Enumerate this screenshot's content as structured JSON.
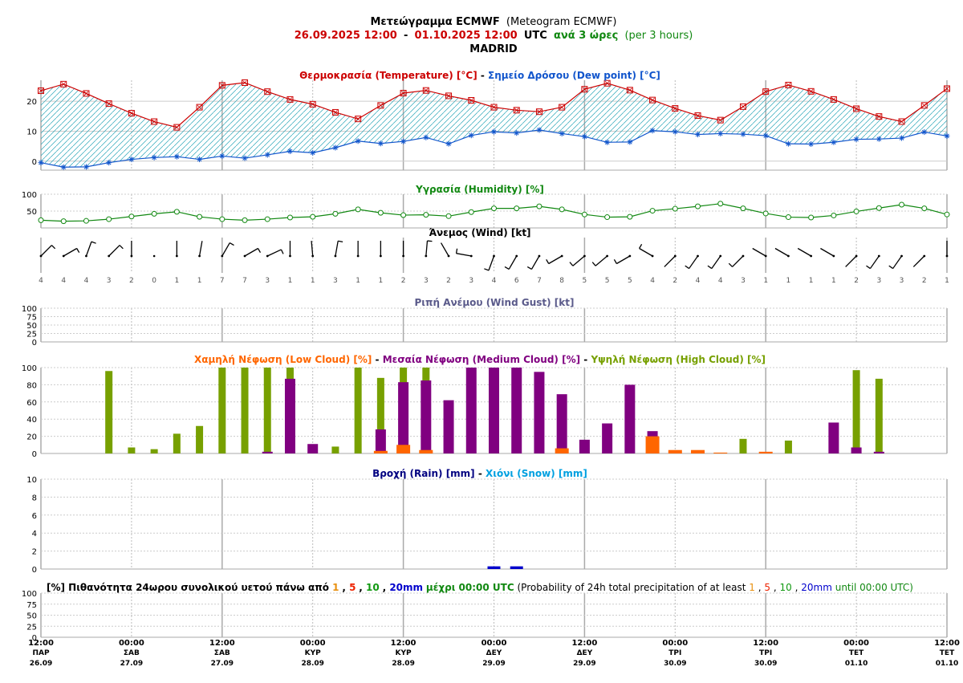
{
  "header": {
    "title_gr": "Μετεώγραμμα ECMWF",
    "title_en": "(Meteogram ECMWF)",
    "period_start": "26.09.2025 12:00",
    "period_sep": "-",
    "period_end": "01.10.2025 12:00",
    "period_utc": "UTC",
    "step_gr": "ανά 3 ώρες",
    "step_en": "(per 3 hours)",
    "location": "MADRID"
  },
  "colors": {
    "temperature": "#cc0000",
    "dewpoint": "#1155cc",
    "humidity": "#118811",
    "gust": "#5a5a8a",
    "low_cloud": "#ff6600",
    "medium_cloud": "#800080",
    "high_cloud": "#77a000",
    "rain": "#000080",
    "snow": "#00a0e0",
    "p1": "#e89010",
    "p5": "#ee2200",
    "p10": "#119911",
    "p20": "#0000cc",
    "shade": "#2aa6b8"
  },
  "x_axis": {
    "ticks": [
      {
        "time": "12:00",
        "day": "ΠΑΡ",
        "date": "26.09"
      },
      {
        "time": "00:00",
        "day": "ΣΑΒ",
        "date": "27.09"
      },
      {
        "time": "12:00",
        "day": "ΣΑΒ",
        "date": "27.09"
      },
      {
        "time": "00:00",
        "day": "ΚΥΡ",
        "date": "28.09"
      },
      {
        "time": "12:00",
        "day": "ΚΥΡ",
        "date": "28.09"
      },
      {
        "time": "00:00",
        "day": "ΔΕΥ",
        "date": "29.09"
      },
      {
        "time": "12:00",
        "day": "ΔΕΥ",
        "date": "29.09"
      },
      {
        "time": "00:00",
        "day": "ΤΡΙ",
        "date": "30.09"
      },
      {
        "time": "12:00",
        "day": "ΤΡΙ",
        "date": "30.09"
      },
      {
        "time": "00:00",
        "day": "ΤΕΤ",
        "date": "01.10"
      },
      {
        "time": "12:00",
        "day": "ΤΕΤ",
        "date": "01.10"
      }
    ]
  },
  "chart_data": [
    {
      "type": "line",
      "panel": "temperature",
      "title_parts": [
        "Θερμοκρασία (Temperature) [°C]",
        " - ",
        "Σημείο Δρόσου (Dew point) [°C]"
      ],
      "x_steps": 41,
      "yticks": [
        "0",
        "10",
        "20"
      ],
      "ylim": [
        -3,
        27
      ],
      "series": [
        {
          "name": "Θερμοκρασία (Temperature) [°C]",
          "values": [
            23.5,
            25.7,
            22.6,
            19.2,
            16.0,
            13.2,
            11.3,
            18.0,
            25.3,
            26.2,
            23.2,
            20.6,
            19.0,
            16.3,
            14.1,
            18.6,
            22.7,
            23.6,
            21.8,
            20.3,
            18.0,
            17.0,
            16.5,
            18.0,
            24.0,
            26.0,
            23.7,
            20.4,
            17.6,
            15.2,
            13.7,
            18.2,
            23.2,
            25.4,
            23.3,
            20.6,
            17.5,
            14.9,
            13.2,
            18.6,
            24.2
          ]
        },
        {
          "name": "Σημείο Δρόσου (Dew point) [°C]",
          "values": [
            -0.5,
            -2.0,
            -1.9,
            -0.5,
            0.6,
            1.2,
            1.5,
            0.6,
            1.7,
            1.0,
            2.1,
            3.3,
            2.8,
            4.5,
            6.7,
            5.9,
            6.6,
            7.9,
            5.8,
            8.6,
            9.8,
            9.4,
            10.4,
            9.2,
            8.2,
            6.3,
            6.4,
            10.2,
            9.8,
            8.9,
            9.2,
            9.0,
            8.5,
            5.8,
            5.7,
            6.3,
            7.3,
            7.4,
            7.7,
            9.7,
            8.4
          ]
        }
      ]
    },
    {
      "type": "line",
      "panel": "humidity",
      "title": "Υγρασία (Humidity) [%]",
      "yticks": [
        "50",
        "100"
      ],
      "ylim": [
        0,
        100
      ],
      "values": [
        23,
        20,
        21,
        26,
        34,
        42,
        48,
        33,
        26,
        23,
        26,
        31,
        33,
        42,
        55,
        45,
        38,
        39,
        35,
        47,
        58,
        58,
        64,
        55,
        40,
        32,
        33,
        51,
        57,
        64,
        72,
        58,
        43,
        32,
        31,
        37,
        49,
        59,
        69,
        58,
        40
      ]
    },
    {
      "type": "scatter",
      "panel": "wind",
      "title": "Άνεμος (Wind) [kt]",
      "speed_labels": [
        "4",
        "4",
        "4",
        "3",
        "2",
        "0",
        "1",
        "1",
        "7",
        "7",
        "3",
        "1",
        "1",
        "3",
        "1",
        "1",
        "2",
        "3",
        "2",
        "3",
        "4",
        "6",
        "7",
        "8",
        "5",
        "5",
        "5",
        "4",
        "2",
        "4",
        "4",
        "3",
        "1",
        "1",
        "1",
        "1",
        "2",
        "3",
        "3",
        "2",
        "1"
      ],
      "direction_deg": [
        45,
        60,
        20,
        45,
        0,
        0,
        0,
        10,
        30,
        60,
        65,
        0,
        355,
        10,
        0,
        0,
        0,
        5,
        330,
        280,
        200,
        210,
        210,
        240,
        230,
        230,
        240,
        300,
        225,
        215,
        215,
        225,
        300,
        300,
        300,
        300,
        225,
        215,
        215,
        225,
        0
      ]
    },
    {
      "type": "bar",
      "panel": "gust",
      "title": "Ριπή Ανέμου (Wind Gust) [kt]",
      "yticks": [
        "0",
        "25",
        "50",
        "75",
        "100"
      ],
      "ylim": [
        0,
        100
      ],
      "values": []
    },
    {
      "type": "bar",
      "panel": "cloud",
      "title_parts": [
        "Χαμηλή Νέφωση (Low Cloud) [%]",
        " - ",
        "Μεσαία Νέφωση (Medium Cloud) [%]",
        " - ",
        "Υψηλή Νέφωση (High Cloud) [%]"
      ],
      "yticks": [
        "0",
        "20",
        "40",
        "60",
        "80",
        "100"
      ],
      "ylim": [
        0,
        100
      ],
      "series": [
        {
          "name": "Χαμηλή Νέφωση (Low Cloud) [%]",
          "values": [
            0,
            0,
            0,
            0,
            0,
            0,
            0,
            0,
            0,
            0,
            0,
            0,
            0,
            0,
            0,
            3,
            10,
            4,
            0,
            0,
            0,
            0,
            0,
            6,
            0,
            0,
            0,
            20,
            4,
            4,
            1,
            0,
            2,
            0,
            0,
            0,
            0,
            0,
            0,
            0,
            0
          ]
        },
        {
          "name": "Μεσαία Νέφωση (Medium Cloud) [%]",
          "values": [
            0,
            0,
            0,
            0,
            0,
            0,
            0,
            0,
            0,
            0,
            2,
            87,
            11,
            0,
            0,
            28,
            83,
            85,
            62,
            100,
            100,
            100,
            95,
            69,
            16,
            35,
            80,
            26,
            0,
            0,
            0,
            0,
            0,
            0,
            0,
            36,
            7,
            2,
            0,
            0,
            0
          ]
        },
        {
          "name": "Υψηλή Νέφωση (High Cloud) [%]",
          "values": [
            0,
            0,
            0,
            96,
            7,
            5,
            23,
            32,
            100,
            100,
            100,
            100,
            0,
            8,
            100,
            88,
            100,
            100,
            0,
            0,
            0,
            0,
            0,
            0,
            0,
            0,
            0,
            0,
            0,
            0,
            0,
            17,
            0,
            15,
            0,
            0,
            97,
            87,
            0,
            0,
            0
          ]
        }
      ]
    },
    {
      "type": "bar",
      "panel": "precip",
      "title_parts": [
        "Βροχή (Rain) [mm]",
        " - ",
        "Χιόνι (Snow) [mm]"
      ],
      "yticks": [
        "0",
        "2",
        "4",
        "6",
        "8",
        "10"
      ],
      "ylim": [
        0,
        10
      ],
      "series": [
        {
          "name": "Βροχή (Rain) [mm]",
          "values": [
            0,
            0,
            0,
            0,
            0,
            0,
            0,
            0,
            0,
            0,
            0,
            0,
            0,
            0,
            0,
            0,
            0,
            0,
            0,
            0,
            0.3,
            0.3,
            0,
            0,
            0,
            0,
            0,
            0,
            0,
            0,
            0,
            0,
            0,
            0,
            0,
            0,
            0,
            0,
            0,
            0,
            0
          ]
        },
        {
          "name": "Χιόνι (Snow) [mm]",
          "values": []
        }
      ]
    },
    {
      "type": "bar",
      "panel": "probability",
      "title_parts": [
        "[%] Πιθανότητα 24ωρου συνολικού υετού πάνω από ",
        "1",
        ", ",
        "5",
        ", ",
        "10",
        ", ",
        "20mm",
        " μέχρι 00:00 UTC",
        " (Probability of 24h total precipitation of at least ",
        "1",
        ", ",
        "5",
        ", ",
        "10",
        ", ",
        "20mm",
        " until 00:00 UTC)"
      ],
      "yticks": [
        "0",
        "25",
        "50",
        "75",
        "100"
      ],
      "ylim": [
        0,
        100
      ],
      "values": []
    }
  ]
}
